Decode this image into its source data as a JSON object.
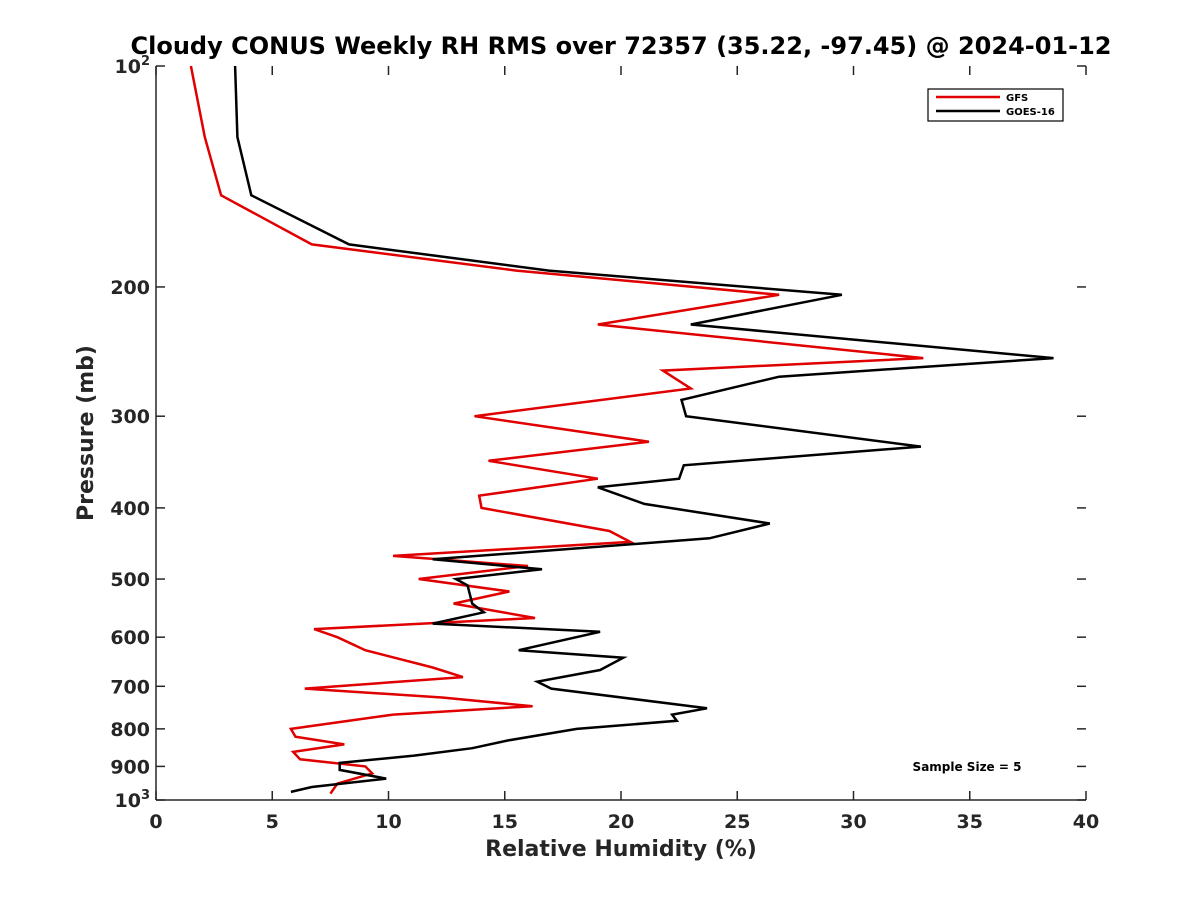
{
  "chart_data": {
    "type": "line",
    "title": "Cloudy CONUS Weekly RH RMS over 72357 (35.22, -97.45) @ 2024-01-12",
    "xlabel": "Relative Humidity (%)",
    "ylabel": "Pressure (mb)",
    "xlim": [
      0,
      40
    ],
    "ylim": [
      100,
      1000
    ],
    "y_scale": "log",
    "y_reversed": true,
    "grid": false,
    "legend_position": "top-right",
    "x_ticks": [
      "0",
      "5",
      "10",
      "15",
      "20",
      "25",
      "30",
      "35",
      "40"
    ],
    "y_ticks": [
      {
        "value": 100,
        "base": "10",
        "exp": "2"
      },
      {
        "value": 200,
        "label": "200"
      },
      {
        "value": 300,
        "label": "300"
      },
      {
        "value": 400,
        "label": "400"
      },
      {
        "value": 500,
        "label": "500"
      },
      {
        "value": 600,
        "label": "600"
      },
      {
        "value": 700,
        "label": "700"
      },
      {
        "value": 800,
        "label": "800"
      },
      {
        "value": 900,
        "label": "900"
      },
      {
        "value": 1000,
        "base": "10",
        "exp": "3"
      }
    ],
    "annotation": "Sample Size = 5",
    "series": [
      {
        "name": "GFS",
        "color": "#e00000",
        "points": [
          [
            1.5,
            100
          ],
          [
            2.1,
            125
          ],
          [
            2.8,
            150
          ],
          [
            6.7,
            175
          ],
          [
            15.5,
            190
          ],
          [
            26.8,
            205
          ],
          [
            19.0,
            225
          ],
          [
            33.0,
            250
          ],
          [
            21.8,
            260
          ],
          [
            23.0,
            275
          ],
          [
            13.7,
            300
          ],
          [
            21.2,
            325
          ],
          [
            14.3,
            345
          ],
          [
            19.0,
            365
          ],
          [
            13.9,
            385
          ],
          [
            14.0,
            400
          ],
          [
            19.5,
            430
          ],
          [
            20.4,
            445
          ],
          [
            10.2,
            465
          ],
          [
            16.0,
            480
          ],
          [
            11.3,
            500
          ],
          [
            15.2,
            520
          ],
          [
            12.8,
            540
          ],
          [
            16.3,
            565
          ],
          [
            6.8,
            585
          ],
          [
            7.8,
            600
          ],
          [
            9.0,
            625
          ],
          [
            11.9,
            660
          ],
          [
            13.2,
            680
          ],
          [
            6.4,
            705
          ],
          [
            12.3,
            725
          ],
          [
            16.2,
            745
          ],
          [
            10.2,
            765
          ],
          [
            8.3,
            780
          ],
          [
            5.8,
            800
          ],
          [
            6.0,
            820
          ],
          [
            8.1,
            840
          ],
          [
            5.9,
            860
          ],
          [
            6.2,
            880
          ],
          [
            9.0,
            900
          ],
          [
            9.3,
            920
          ],
          [
            7.8,
            950
          ],
          [
            7.6,
            970
          ],
          [
            7.5,
            980
          ]
        ]
      },
      {
        "name": "GOES-16",
        "color": "#000000",
        "points": [
          [
            3.4,
            100
          ],
          [
            3.5,
            125
          ],
          [
            4.1,
            150
          ],
          [
            8.3,
            175
          ],
          [
            16.9,
            190
          ],
          [
            29.5,
            205
          ],
          [
            23.0,
            225
          ],
          [
            38.6,
            250
          ],
          [
            26.8,
            265
          ],
          [
            22.6,
            285
          ],
          [
            22.8,
            300
          ],
          [
            32.9,
            330
          ],
          [
            22.7,
            350
          ],
          [
            22.5,
            365
          ],
          [
            19.0,
            375
          ],
          [
            21.0,
            395
          ],
          [
            26.4,
            420
          ],
          [
            23.8,
            440
          ],
          [
            11.9,
            470
          ],
          [
            16.6,
            485
          ],
          [
            12.9,
            500
          ],
          [
            13.4,
            510
          ],
          [
            13.5,
            525
          ],
          [
            13.6,
            540
          ],
          [
            14.1,
            555
          ],
          [
            11.9,
            575
          ],
          [
            19.1,
            590
          ],
          [
            15.6,
            625
          ],
          [
            20.1,
            640
          ],
          [
            19.1,
            665
          ],
          [
            16.4,
            690
          ],
          [
            17.0,
            705
          ],
          [
            23.7,
            750
          ],
          [
            22.2,
            765
          ],
          [
            22.4,
            780
          ],
          [
            18.1,
            800
          ],
          [
            15.1,
            830
          ],
          [
            13.6,
            850
          ],
          [
            11.1,
            870
          ],
          [
            7.9,
            890
          ],
          [
            7.9,
            910
          ],
          [
            9.9,
            935
          ],
          [
            6.7,
            960
          ],
          [
            5.8,
            975
          ]
        ]
      }
    ]
  }
}
